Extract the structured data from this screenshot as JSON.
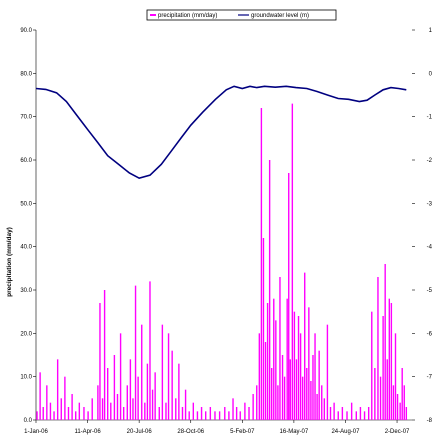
{
  "chart_data": {
    "type": "bar+line",
    "title": "",
    "x_tick_labels": [
      "1-Jan-06",
      "11-Apr-06",
      "20-Jul-06",
      "28-Oct-06",
      "5-Feb-07",
      "16-May-07",
      "24-Aug-07",
      "2-Dec-07"
    ],
    "left_axis": {
      "label": "precipitation (mm/day)",
      "ylim": [
        0,
        90
      ],
      "tick_labels": [
        "0.0",
        "10.0",
        "20.0",
        "30.0",
        "40.0",
        "50.0",
        "60.0",
        "70.0",
        "80.0",
        "90.0"
      ]
    },
    "right_axis": {
      "label": "",
      "ylim": [
        -8,
        1
      ],
      "tick_labels": [
        "1",
        "0",
        "-1",
        "-2",
        "-3",
        "-4",
        "-5",
        "-6",
        "-7",
        "-8"
      ]
    },
    "legend": {
      "placement": "top-center",
      "entries": [
        "precipitation (mm/day)",
        "groundwater level (m)"
      ]
    },
    "colors": {
      "precipitation": "#ff00ff",
      "groundwater": "#000080"
    },
    "series": [
      {
        "name": "precipitation (mm/day)",
        "axis": "left",
        "kind": "bar",
        "points": [
          [
            "2006-01-03",
            2
          ],
          [
            "2006-01-09",
            11
          ],
          [
            "2006-01-15",
            3
          ],
          [
            "2006-01-22",
            8
          ],
          [
            "2006-01-29",
            4
          ],
          [
            "2006-02-05",
            2
          ],
          [
            "2006-02-12",
            14
          ],
          [
            "2006-02-19",
            5
          ],
          [
            "2006-02-26",
            10
          ],
          [
            "2006-03-05",
            3
          ],
          [
            "2006-03-12",
            6
          ],
          [
            "2006-03-19",
            2
          ],
          [
            "2006-03-26",
            4
          ],
          [
            "2006-04-04",
            3
          ],
          [
            "2006-04-12",
            2
          ],
          [
            "2006-04-20",
            5
          ],
          [
            "2006-05-01",
            8
          ],
          [
            "2006-05-05",
            27
          ],
          [
            "2006-05-10",
            5
          ],
          [
            "2006-05-14",
            30
          ],
          [
            "2006-05-20",
            12
          ],
          [
            "2006-05-26",
            4
          ],
          [
            "2006-06-02",
            15
          ],
          [
            "2006-06-08",
            6
          ],
          [
            "2006-06-14",
            20
          ],
          [
            "2006-06-20",
            3
          ],
          [
            "2006-06-27",
            8
          ],
          [
            "2006-07-03",
            14
          ],
          [
            "2006-07-08",
            5
          ],
          [
            "2006-07-13",
            31
          ],
          [
            "2006-07-18",
            10
          ],
          [
            "2006-07-25",
            22
          ],
          [
            "2006-07-31",
            4
          ],
          [
            "2006-08-05",
            13
          ],
          [
            "2006-08-10",
            32
          ],
          [
            "2006-08-15",
            7
          ],
          [
            "2006-08-20",
            11
          ],
          [
            "2006-08-28",
            3
          ],
          [
            "2006-09-03",
            22
          ],
          [
            "2006-09-10",
            4
          ],
          [
            "2006-09-15",
            20
          ],
          [
            "2006-09-22",
            16
          ],
          [
            "2006-09-29",
            5
          ],
          [
            "2006-10-05",
            13
          ],
          [
            "2006-10-12",
            3
          ],
          [
            "2006-10-18",
            7
          ],
          [
            "2006-10-25",
            2
          ],
          [
            "2006-11-02",
            4
          ],
          [
            "2006-11-10",
            2
          ],
          [
            "2006-11-18",
            3
          ],
          [
            "2006-11-26",
            2
          ],
          [
            "2006-12-05",
            3
          ],
          [
            "2006-12-14",
            2
          ],
          [
            "2006-12-23",
            2
          ],
          [
            "2007-01-02",
            3
          ],
          [
            "2007-01-10",
            2
          ],
          [
            "2007-01-18",
            5
          ],
          [
            "2007-01-25",
            3
          ],
          [
            "2007-02-01",
            2
          ],
          [
            "2007-02-10",
            4
          ],
          [
            "2007-02-18",
            3
          ],
          [
            "2007-02-26",
            6
          ],
          [
            "2007-03-05",
            8
          ],
          [
            "2007-03-10",
            20
          ],
          [
            "2007-03-14",
            72
          ],
          [
            "2007-03-18",
            42
          ],
          [
            "2007-03-22",
            18
          ],
          [
            "2007-03-26",
            27
          ],
          [
            "2007-03-30",
            60
          ],
          [
            "2007-04-03",
            12
          ],
          [
            "2007-04-07",
            28
          ],
          [
            "2007-04-11",
            23
          ],
          [
            "2007-04-15",
            8
          ],
          [
            "2007-04-19",
            33
          ],
          [
            "2007-04-24",
            15
          ],
          [
            "2007-04-28",
            10
          ],
          [
            "2007-05-03",
            28
          ],
          [
            "2007-05-06",
            57
          ],
          [
            "2007-05-09",
            14
          ],
          [
            "2007-05-13",
            73
          ],
          [
            "2007-05-17",
            25
          ],
          [
            "2007-05-21",
            14
          ],
          [
            "2007-05-25",
            24
          ],
          [
            "2007-05-29",
            20
          ],
          [
            "2007-06-02",
            10
          ],
          [
            "2007-06-06",
            34
          ],
          [
            "2007-06-10",
            12
          ],
          [
            "2007-06-14",
            26
          ],
          [
            "2007-06-18",
            9
          ],
          [
            "2007-06-22",
            15
          ],
          [
            "2007-06-26",
            20
          ],
          [
            "2007-06-30",
            6
          ],
          [
            "2007-07-04",
            16
          ],
          [
            "2007-07-09",
            8
          ],
          [
            "2007-07-14",
            5
          ],
          [
            "2007-07-20",
            22
          ],
          [
            "2007-07-26",
            3
          ],
          [
            "2007-08-02",
            4
          ],
          [
            "2007-08-10",
            2
          ],
          [
            "2007-08-18",
            3
          ],
          [
            "2007-08-27",
            2
          ],
          [
            "2007-09-05",
            4
          ],
          [
            "2007-09-14",
            2
          ],
          [
            "2007-09-22",
            3
          ],
          [
            "2007-09-30",
            2
          ],
          [
            "2007-10-08",
            3
          ],
          [
            "2007-10-14",
            25
          ],
          [
            "2007-10-20",
            12
          ],
          [
            "2007-10-26",
            33
          ],
          [
            "2007-10-31",
            10
          ],
          [
            "2007-11-05",
            24
          ],
          [
            "2007-11-09",
            36
          ],
          [
            "2007-11-13",
            14
          ],
          [
            "2007-11-17",
            28
          ],
          [
            "2007-11-21",
            27
          ],
          [
            "2007-11-25",
            8
          ],
          [
            "2007-11-29",
            20
          ],
          [
            "2007-12-03",
            6
          ],
          [
            "2007-12-08",
            4
          ],
          [
            "2007-12-12",
            12
          ],
          [
            "2007-12-16",
            8
          ],
          [
            "2007-12-20",
            3
          ]
        ]
      },
      {
        "name": "groundwater level (m)",
        "axis": "right",
        "kind": "line",
        "points": [
          [
            "2006-01-01",
            -0.35
          ],
          [
            "2006-01-20",
            -0.37
          ],
          [
            "2006-02-10",
            -0.45
          ],
          [
            "2006-03-01",
            -0.65
          ],
          [
            "2006-03-20",
            -0.95
          ],
          [
            "2006-04-10",
            -1.28
          ],
          [
            "2006-05-01",
            -1.6
          ],
          [
            "2006-05-20",
            -1.9
          ],
          [
            "2006-06-10",
            -2.1
          ],
          [
            "2006-07-01",
            -2.3
          ],
          [
            "2006-07-20",
            -2.42
          ],
          [
            "2006-08-10",
            -2.35
          ],
          [
            "2006-09-01",
            -2.1
          ],
          [
            "2006-09-20",
            -1.8
          ],
          [
            "2006-10-10",
            -1.48
          ],
          [
            "2006-10-28",
            -1.2
          ],
          [
            "2006-11-20",
            -0.9
          ],
          [
            "2006-12-15",
            -0.6
          ],
          [
            "2007-01-05",
            -0.38
          ],
          [
            "2007-01-20",
            -0.3
          ],
          [
            "2007-02-05",
            -0.35
          ],
          [
            "2007-02-20",
            -0.3
          ],
          [
            "2007-03-05",
            -0.33
          ],
          [
            "2007-03-20",
            -0.3
          ],
          [
            "2007-04-10",
            -0.32
          ],
          [
            "2007-05-01",
            -0.3
          ],
          [
            "2007-05-20",
            -0.33
          ],
          [
            "2007-06-10",
            -0.35
          ],
          [
            "2007-06-30",
            -0.42
          ],
          [
            "2007-07-20",
            -0.5
          ],
          [
            "2007-08-10",
            -0.58
          ],
          [
            "2007-08-30",
            -0.6
          ],
          [
            "2007-09-20",
            -0.65
          ],
          [
            "2007-10-05",
            -0.62
          ],
          [
            "2007-10-20",
            -0.5
          ],
          [
            "2007-11-05",
            -0.38
          ],
          [
            "2007-11-20",
            -0.33
          ],
          [
            "2007-12-05",
            -0.35
          ],
          [
            "2007-12-20",
            -0.38
          ]
        ]
      }
    ]
  }
}
